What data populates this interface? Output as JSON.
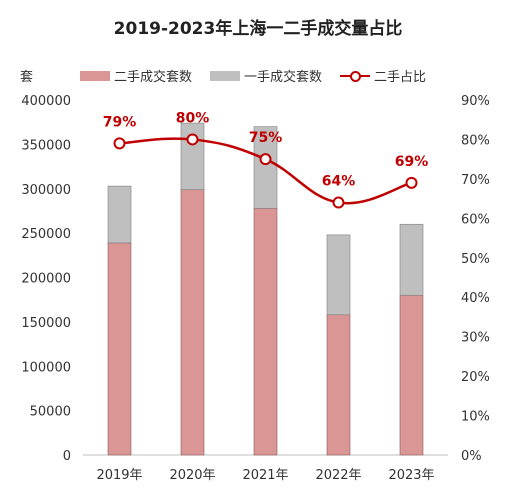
{
  "chart_data": {
    "type": "bar",
    "title": "2019-2023年上海一二手成交量占比",
    "ylabel": "套",
    "categories": [
      "2019年",
      "2020年",
      "2021年",
      "2022年",
      "2023年"
    ],
    "series": [
      {
        "name": "二手成交套数",
        "type": "bar",
        "values": [
          239000,
          299000,
          278000,
          158000,
          180000
        ],
        "color": "#d99694"
      },
      {
        "name": "一手成交套数",
        "type": "bar",
        "values": [
          64000,
          75000,
          92000,
          90000,
          80000
        ],
        "color": "#bfbfbf"
      },
      {
        "name": "二手占比",
        "type": "line",
        "axis": "right",
        "values": [
          79,
          80,
          75,
          64,
          69
        ],
        "labels": [
          "79%",
          "80%",
          "75%",
          "64%",
          "69%"
        ],
        "color": "#c00000"
      }
    ],
    "stacked": true,
    "ylim": [
      0,
      400000
    ],
    "y_ticks": [
      "0",
      "50000",
      "100000",
      "150000",
      "200000",
      "250000",
      "300000",
      "350000",
      "400000"
    ],
    "y2lim": [
      0,
      90
    ],
    "y2_ticks": [
      "0%",
      "10%",
      "20%",
      "30%",
      "40%",
      "50%",
      "60%",
      "70%",
      "80%",
      "90%"
    ],
    "legend_position": "top",
    "grid": false
  }
}
